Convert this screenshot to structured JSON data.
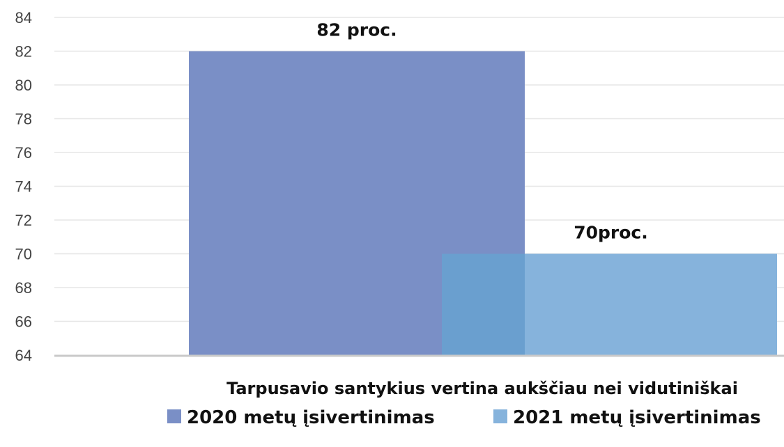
{
  "chart_data": {
    "type": "bar",
    "title": "",
    "categories": [
      "Tarpusavio santykius vertina aukščiau nei vidutiniškai"
    ],
    "series": [
      {
        "name": "2020 metų įsivertinimas",
        "values": [
          82
        ],
        "label": "82 proc.",
        "color": "#7a8fc6"
      },
      {
        "name": "2021 metų įsivertinimas",
        "values": [
          70
        ],
        "label": "70proc.",
        "color": "#86b3dc"
      }
    ],
    "overlap_color": "#6a9fcf",
    "ylim": [
      64,
      84
    ],
    "yticks": [
      64,
      66,
      68,
      70,
      72,
      74,
      76,
      78,
      80,
      82,
      84
    ],
    "xlabel": "",
    "ylabel": "",
    "grid": true,
    "legend": "bottom"
  }
}
